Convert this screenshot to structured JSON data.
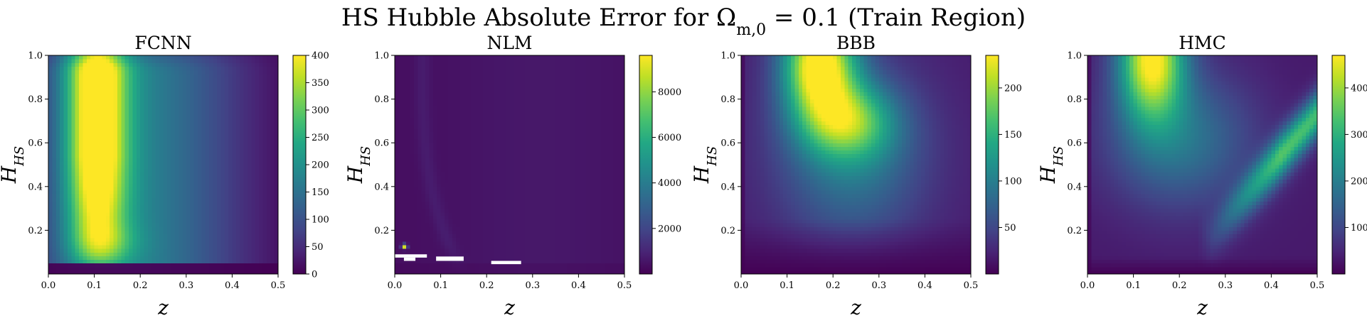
{
  "figure": {
    "title": "HS Hubble Absolute Error for Ω",
    "title_sub": "m,0",
    "title_tail": " = 0.1 (Train Region)"
  },
  "chart_data": [
    {
      "type": "heatmap",
      "title": "FCNN",
      "xlabel": "z",
      "ylabel": "H",
      "ylabel_sub": "HS",
      "xlim": [
        0.0,
        0.5
      ],
      "ylim": [
        0.0,
        1.0
      ],
      "xticks": [
        "0.0",
        "0.1",
        "0.2",
        "0.3",
        "0.4",
        "0.5"
      ],
      "yticks": [
        "0.2",
        "0.4",
        "0.6",
        "0.8",
        "1.0"
      ],
      "colorbar": {
        "min": 0,
        "max": 400,
        "ticks": [
          0,
          50,
          100,
          150,
          200,
          250,
          300,
          350,
          400
        ]
      },
      "colormap": "viridis",
      "peak": {
        "z": 0.1,
        "H": 0.7
      }
    },
    {
      "type": "heatmap",
      "title": "NLM",
      "xlabel": "z",
      "ylabel": "H",
      "ylabel_sub": "HS",
      "xlim": [
        0.0,
        0.5
      ],
      "ylim": [
        0.0,
        1.0
      ],
      "xticks": [
        "0.0",
        "0.1",
        "0.2",
        "0.3",
        "0.4",
        "0.5"
      ],
      "yticks": [
        "0.2",
        "0.4",
        "0.6",
        "0.8",
        "1.0"
      ],
      "colorbar": {
        "min": 0,
        "max": 9600,
        "ticks": [
          2000,
          4000,
          6000,
          8000
        ]
      },
      "colormap": "viridis",
      "peak": {
        "z": 0.02,
        "H": 0.13
      },
      "missing_regions": [
        {
          "z": [
            0.0,
            0.07
          ],
          "H": [
            0.075,
            0.09
          ]
        },
        {
          "z": [
            0.02,
            0.045
          ],
          "H": [
            0.06,
            0.075
          ]
        },
        {
          "z": [
            0.09,
            0.15
          ],
          "H": [
            0.06,
            0.08
          ]
        },
        {
          "z": [
            0.21,
            0.275
          ],
          "H": [
            0.045,
            0.06
          ]
        }
      ]
    },
    {
      "type": "heatmap",
      "title": "BBB",
      "xlabel": "z",
      "ylabel": "H",
      "ylabel_sub": "HS",
      "xlim": [
        0.0,
        0.5
      ],
      "ylim": [
        0.0,
        1.0
      ],
      "xticks": [
        "0.0",
        "0.1",
        "0.2",
        "0.3",
        "0.4",
        "0.5"
      ],
      "yticks": [
        "0.2",
        "0.4",
        "0.6",
        "0.8",
        "1.0"
      ],
      "colorbar": {
        "min": 0,
        "max": 235,
        "ticks": [
          50,
          100,
          150,
          200
        ]
      },
      "colormap": "viridis",
      "peak": {
        "z": 0.17,
        "H": 0.95
      }
    },
    {
      "type": "heatmap",
      "title": "HMC",
      "xlabel": "z",
      "ylabel": "H",
      "ylabel_sub": "HS",
      "xlim": [
        0.0,
        0.5
      ],
      "ylim": [
        0.0,
        1.0
      ],
      "xticks": [
        "0.0",
        "0.1",
        "0.2",
        "0.3",
        "0.4",
        "0.5"
      ],
      "yticks": [
        "0.2",
        "0.4",
        "0.6",
        "0.8",
        "1.0"
      ],
      "colorbar": {
        "min": 0,
        "max": 470,
        "ticks": [
          100,
          200,
          300,
          400
        ]
      },
      "colormap": "viridis",
      "peak": {
        "z": 0.14,
        "H": 0.95
      }
    }
  ]
}
